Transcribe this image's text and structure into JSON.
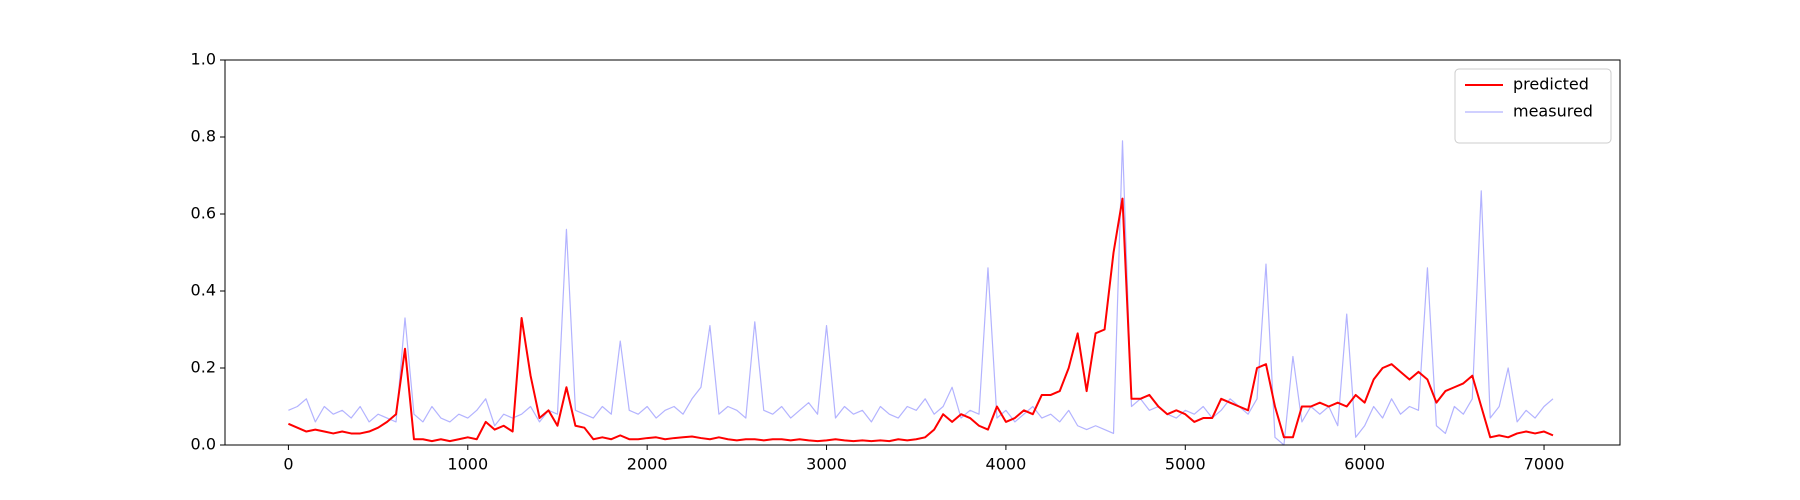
{
  "chart_data": {
    "type": "line",
    "x": [
      0,
      50,
      100,
      150,
      200,
      250,
      300,
      350,
      400,
      450,
      500,
      550,
      600,
      650,
      700,
      750,
      800,
      850,
      900,
      950,
      1000,
      1050,
      1100,
      1150,
      1200,
      1250,
      1300,
      1350,
      1400,
      1450,
      1500,
      1550,
      1600,
      1650,
      1700,
      1750,
      1800,
      1850,
      1900,
      1950,
      2000,
      2050,
      2100,
      2150,
      2200,
      2250,
      2300,
      2350,
      2400,
      2450,
      2500,
      2550,
      2600,
      2650,
      2700,
      2750,
      2800,
      2850,
      2900,
      2950,
      3000,
      3050,
      3100,
      3150,
      3200,
      3250,
      3300,
      3350,
      3400,
      3450,
      3500,
      3550,
      3600,
      3650,
      3700,
      3750,
      3800,
      3850,
      3900,
      3950,
      4000,
      4050,
      4100,
      4150,
      4200,
      4250,
      4300,
      4350,
      4400,
      4450,
      4500,
      4550,
      4600,
      4650,
      4700,
      4750,
      4800,
      4850,
      4900,
      4950,
      5000,
      5050,
      5100,
      5150,
      5200,
      5250,
      5300,
      5350,
      5400,
      5450,
      5500,
      5550,
      5600,
      5650,
      5700,
      5750,
      5800,
      5850,
      5900,
      5950,
      6000,
      6050,
      6100,
      6150,
      6200,
      6250,
      6300,
      6350,
      6400,
      6450,
      6500,
      6550,
      6600,
      6650,
      6700,
      6750,
      6800,
      6850,
      6900,
      6950,
      7000,
      7050
    ],
    "series": [
      {
        "name": "predicted",
        "color": "#ff0000",
        "width": 2,
        "values": [
          0.055,
          0.045,
          0.035,
          0.04,
          0.035,
          0.03,
          0.035,
          0.03,
          0.03,
          0.035,
          0.045,
          0.06,
          0.08,
          0.25,
          0.015,
          0.015,
          0.01,
          0.015,
          0.01,
          0.015,
          0.02,
          0.015,
          0.06,
          0.04,
          0.05,
          0.035,
          0.33,
          0.18,
          0.07,
          0.09,
          0.05,
          0.15,
          0.05,
          0.045,
          0.015,
          0.02,
          0.015,
          0.025,
          0.015,
          0.015,
          0.018,
          0.02,
          0.015,
          0.018,
          0.02,
          0.022,
          0.018,
          0.015,
          0.02,
          0.015,
          0.012,
          0.015,
          0.015,
          0.012,
          0.015,
          0.015,
          0.012,
          0.015,
          0.012,
          0.01,
          0.012,
          0.015,
          0.012,
          0.01,
          0.012,
          0.01,
          0.012,
          0.01,
          0.015,
          0.012,
          0.015,
          0.02,
          0.04,
          0.08,
          0.06,
          0.08,
          0.07,
          0.05,
          0.04,
          0.1,
          0.06,
          0.07,
          0.09,
          0.08,
          0.13,
          0.13,
          0.14,
          0.2,
          0.29,
          0.14,
          0.29,
          0.3,
          0.5,
          0.64,
          0.12,
          0.12,
          0.13,
          0.1,
          0.08,
          0.09,
          0.08,
          0.06,
          0.07,
          0.07,
          0.12,
          0.11,
          0.1,
          0.09,
          0.2,
          0.21,
          0.1,
          0.02,
          0.02,
          0.1,
          0.1,
          0.11,
          0.1,
          0.11,
          0.1,
          0.13,
          0.11,
          0.17,
          0.2,
          0.21,
          0.19,
          0.17,
          0.19,
          0.17,
          0.11,
          0.14,
          0.15,
          0.16,
          0.18,
          0.1,
          0.02,
          0.025,
          0.02,
          0.03,
          0.035,
          0.03,
          0.035,
          0.025
        ]
      },
      {
        "name": "measured",
        "color": "#b3b3ff",
        "width": 1.2,
        "values": [
          0.09,
          0.1,
          0.12,
          0.06,
          0.1,
          0.08,
          0.09,
          0.07,
          0.1,
          0.06,
          0.08,
          0.07,
          0.06,
          0.33,
          0.08,
          0.06,
          0.1,
          0.07,
          0.06,
          0.08,
          0.07,
          0.09,
          0.12,
          0.05,
          0.08,
          0.07,
          0.08,
          0.1,
          0.06,
          0.09,
          0.08,
          0.56,
          0.09,
          0.08,
          0.07,
          0.1,
          0.08,
          0.27,
          0.09,
          0.08,
          0.1,
          0.07,
          0.09,
          0.1,
          0.08,
          0.12,
          0.15,
          0.31,
          0.08,
          0.1,
          0.09,
          0.07,
          0.32,
          0.09,
          0.08,
          0.1,
          0.07,
          0.09,
          0.11,
          0.08,
          0.31,
          0.07,
          0.1,
          0.08,
          0.09,
          0.06,
          0.1,
          0.08,
          0.07,
          0.1,
          0.09,
          0.12,
          0.08,
          0.1,
          0.15,
          0.07,
          0.09,
          0.08,
          0.46,
          0.07,
          0.09,
          0.06,
          0.08,
          0.1,
          0.07,
          0.08,
          0.06,
          0.09,
          0.05,
          0.04,
          0.05,
          0.04,
          0.03,
          0.79,
          0.1,
          0.12,
          0.09,
          0.1,
          0.08,
          0.07,
          0.09,
          0.08,
          0.1,
          0.07,
          0.09,
          0.12,
          0.1,
          0.08,
          0.12,
          0.47,
          0.02,
          0,
          0.23,
          0.06,
          0.1,
          0.08,
          0.1,
          0.05,
          0.34,
          0.02,
          0.05,
          0.1,
          0.07,
          0.12,
          0.08,
          0.1,
          0.09,
          0.46,
          0.05,
          0.03,
          0.1,
          0.08,
          0.12,
          0.66,
          0.07,
          0.1,
          0.2,
          0.06,
          0.09,
          0.07,
          0.1,
          0.12
        ]
      }
    ],
    "xlim": [
      -353.5,
      7423.5
    ],
    "ylim": [
      0,
      1
    ],
    "xticks": [
      0,
      1000,
      2000,
      3000,
      4000,
      5000,
      6000,
      7000
    ],
    "yticks": [
      {
        "value": 0,
        "label": "0.0"
      },
      {
        "value": 0.2,
        "label": "0.2"
      },
      {
        "value": 0.4,
        "label": "0.4"
      },
      {
        "value": 0.6,
        "label": "0.6"
      },
      {
        "value": 0.8,
        "label": "0.8"
      },
      {
        "value": 1,
        "label": "1.0"
      }
    ],
    "legend": "upper right",
    "draw_order": [
      1,
      0
    ]
  }
}
